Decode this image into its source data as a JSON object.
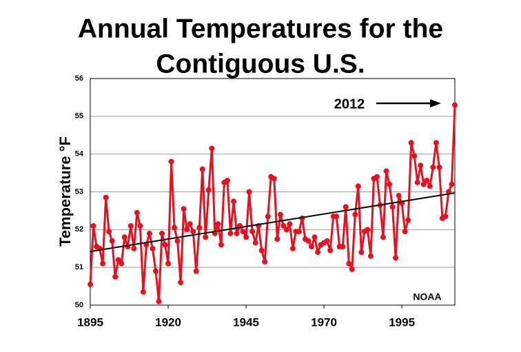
{
  "chart_data": {
    "type": "line",
    "title": [
      "Annual Temperatures for the",
      "Contiguous U.S."
    ],
    "ylabel": "Temperature °F",
    "annotations": [
      "2012",
      "NOAA"
    ],
    "xlim": [
      1895,
      2012
    ],
    "xticks": [
      1895,
      1920,
      1945,
      1970,
      1995
    ],
    "ylim": [
      50,
      56
    ],
    "yticks": [
      50,
      51,
      52,
      53,
      54,
      55,
      56
    ],
    "grid": true,
    "series": [
      {
        "color": "#e8101e",
        "x": [
          1895,
          1896,
          1897,
          1898,
          1899,
          1900,
          1901,
          1902,
          1903,
          1904,
          1905,
          1906,
          1907,
          1908,
          1909,
          1910,
          1911,
          1912,
          1913,
          1914,
          1915,
          1916,
          1917,
          1918,
          1919,
          1920,
          1921,
          1922,
          1923,
          1924,
          1925,
          1926,
          1927,
          1928,
          1929,
          1930,
          1931,
          1932,
          1933,
          1934,
          1935,
          1936,
          1937,
          1938,
          1939,
          1940,
          1941,
          1942,
          1943,
          1944,
          1945,
          1946,
          1947,
          1948,
          1949,
          1950,
          1951,
          1952,
          1953,
          1954,
          1955,
          1956,
          1957,
          1958,
          1959,
          1960,
          1961,
          1962,
          1963,
          1964,
          1965,
          1966,
          1967,
          1968,
          1969,
          1970,
          1971,
          1972,
          1973,
          1974,
          1975,
          1976,
          1977,
          1978,
          1979,
          1980,
          1981,
          1982,
          1983,
          1984,
          1985,
          1986,
          1987,
          1988,
          1989,
          1990,
          1991,
          1992,
          1993,
          1994,
          1995,
          1996,
          1997,
          1998,
          1999,
          2000,
          2001,
          2002,
          2003,
          2004,
          2005,
          2006,
          2007,
          2008,
          2009,
          2010,
          2011,
          2012
        ],
        "values": [
          50.55,
          52.1,
          51.55,
          51.5,
          51.1,
          52.85,
          51.95,
          51.7,
          50.75,
          51.2,
          51.1,
          51.8,
          51.55,
          52.1,
          51.5,
          52.45,
          52.1,
          50.35,
          51.6,
          51.9,
          51.5,
          50.9,
          50.1,
          51.9,
          51.6,
          51.1,
          53.8,
          52.05,
          51.7,
          50.6,
          52.55,
          52.0,
          52.15,
          51.95,
          50.9,
          52.05,
          53.6,
          51.8,
          53.05,
          54.15,
          51.9,
          52.15,
          51.6,
          53.25,
          53.3,
          51.9,
          52.75,
          51.9,
          52.1,
          51.95,
          51.8,
          53.0,
          51.95,
          51.65,
          52.1,
          51.45,
          51.15,
          52.35,
          53.4,
          53.35,
          51.75,
          52.4,
          52.1,
          52.0,
          52.15,
          51.5,
          51.95,
          51.95,
          52.3,
          51.75,
          51.7,
          51.55,
          51.8,
          51.4,
          51.6,
          51.65,
          51.7,
          51.45,
          52.35,
          52.35,
          51.55,
          51.55,
          52.6,
          51.1,
          50.95,
          52.4,
          53.15,
          51.4,
          51.95,
          52.0,
          51.3,
          53.35,
          53.4,
          52.65,
          51.8,
          53.55,
          53.2,
          52.6,
          51.25,
          52.9,
          52.7,
          51.95,
          52.25,
          54.3,
          53.95,
          53.25,
          53.7,
          53.2,
          53.3,
          53.15,
          53.65,
          54.3,
          53.65,
          52.3,
          52.35,
          53.0,
          53.2,
          55.3
        ]
      },
      {
        "color": "#000000",
        "x": [
          1895,
          2012
        ],
        "values": [
          51.42,
          52.97
        ]
      }
    ]
  }
}
